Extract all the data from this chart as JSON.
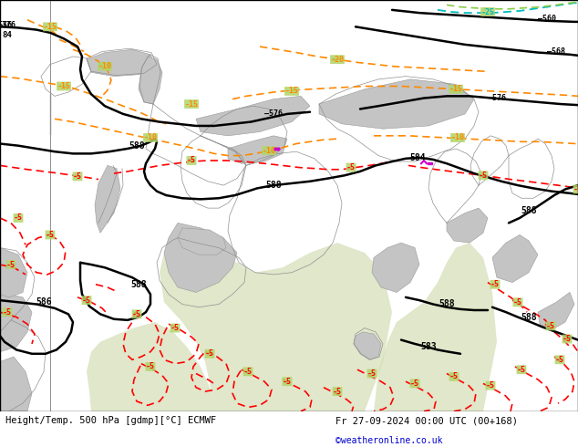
{
  "title_left": "Height/Temp. 500 hPa [gdmp][°C] ECMWF",
  "title_right": "Fr 27-09-2024 00:00 UTC (00+168)",
  "credit": "©weatheronline.co.uk",
  "bg_green": "#b0d060",
  "gray_region": "#c0c0c0",
  "sea_light": "#d0ddb0",
  "figsize": [
    6.34,
    4.9
  ],
  "dpi": 100
}
